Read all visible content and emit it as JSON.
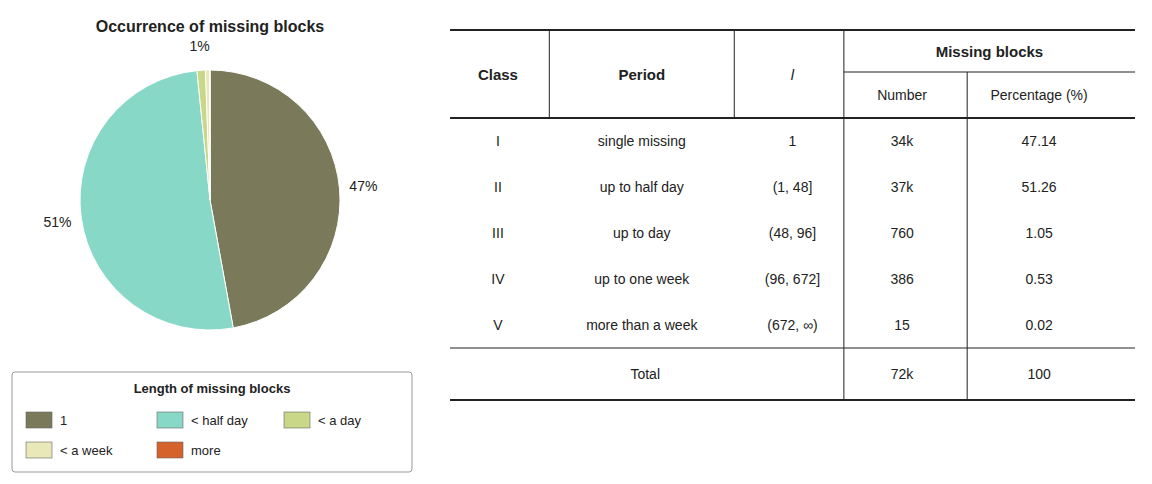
{
  "chart_data": [
    {
      "type": "pie",
      "title": "Occurrence of missing blocks",
      "categories": [
        "1",
        "< half day",
        "< a day",
        "< a week",
        "more"
      ],
      "values": [
        47.14,
        51.26,
        1.05,
        0.53,
        0.02
      ],
      "value_labels": [
        "47%",
        "51%",
        "1%",
        null,
        null
      ],
      "data_labels": true,
      "colors": [
        "#7a7a5a",
        "#88d8c8",
        "#c8d888",
        "#e8e8b8",
        "#d4622a"
      ],
      "legend": "bottom",
      "legend_title": "Length of missing blocks"
    },
    {
      "type": "table",
      "header_group": "Missing blocks",
      "columns": [
        "Class",
        "Period",
        "l",
        "Number",
        "Percentage (%)"
      ],
      "rows": [
        [
          "I",
          "single missing",
          "1",
          "34k",
          "47.14"
        ],
        [
          "II",
          "up to half day",
          "(1, 48]",
          "37k",
          "51.26"
        ],
        [
          "III",
          "up to day",
          "(48, 96]",
          "760",
          "1.05"
        ],
        [
          "IV",
          "up to one week",
          "(96, 672]",
          "386",
          "0.53"
        ],
        [
          "V",
          "more than a week",
          "(672, ∞)",
          "15",
          "0.02"
        ]
      ],
      "total": [
        "Total",
        "72k",
        "100"
      ]
    }
  ]
}
